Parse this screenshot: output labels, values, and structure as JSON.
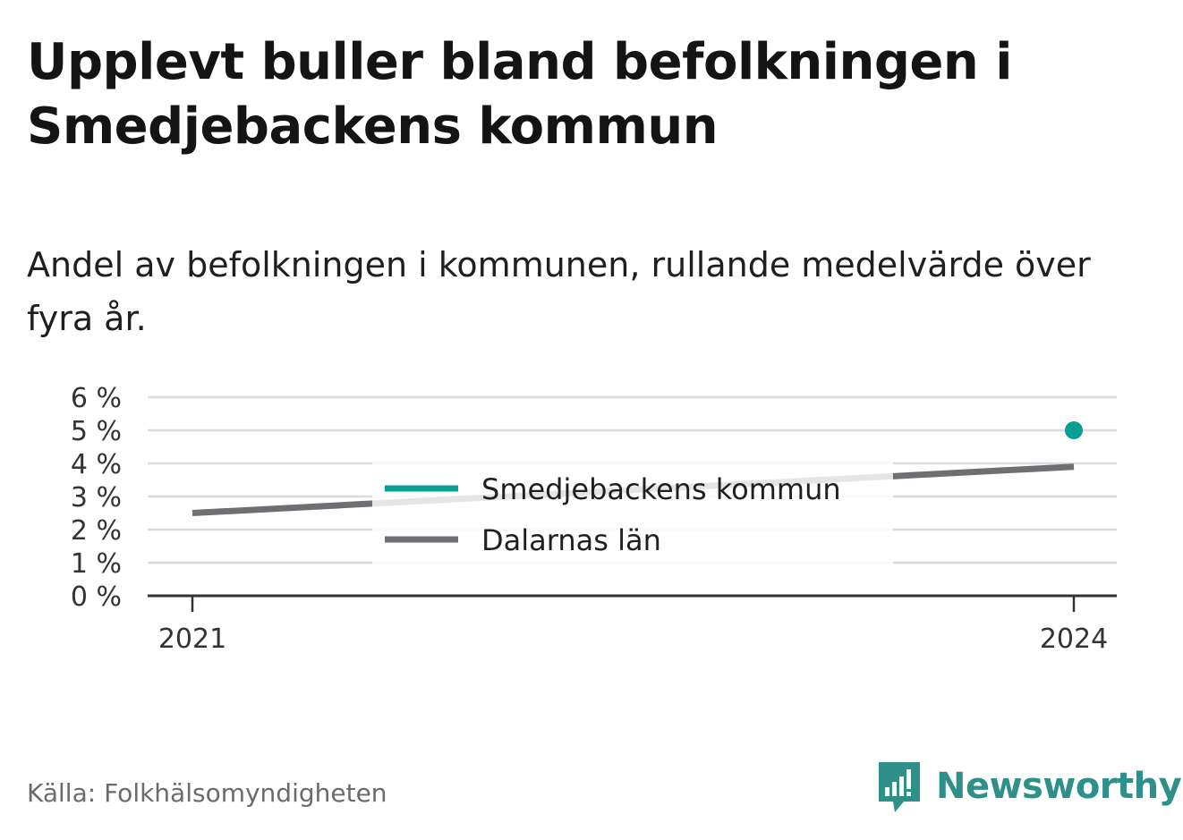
{
  "title": "Upplevt buller bland befolkningen i Smedjebackens kommun",
  "subtitle": "Andel av befolkningen i kommunen, rullande medelvärde över fyra år.",
  "source": "Källa: Folkhälsomyndigheten",
  "brand": {
    "name": "Newsworthy",
    "logo_icon": "newsworthy-logo-icon",
    "color": "#2f8f89"
  },
  "colors": {
    "smedjebacken": "#0a9f94",
    "dalarna": "#6e6e73",
    "grid": "#dcdcdc",
    "axis": "#333333"
  },
  "chart_data": {
    "type": "line",
    "x": [
      2021,
      2024
    ],
    "x_tick_labels": [
      "2021",
      "2024"
    ],
    "y_ticks": [
      0,
      1,
      2,
      3,
      4,
      5,
      6
    ],
    "y_tick_labels": [
      "0 %",
      "1 %",
      "2 %",
      "3 %",
      "4 %",
      "5 %",
      "6 %"
    ],
    "ylim": [
      0,
      6
    ],
    "grid": true,
    "legend_position": "center",
    "series": [
      {
        "name": "Smedjebackens kommun",
        "values": [
          null,
          5.0
        ],
        "color": "#0a9f94"
      },
      {
        "name": "Dalarnas län",
        "values": [
          2.5,
          3.9
        ],
        "color": "#6e6e73"
      }
    ]
  }
}
